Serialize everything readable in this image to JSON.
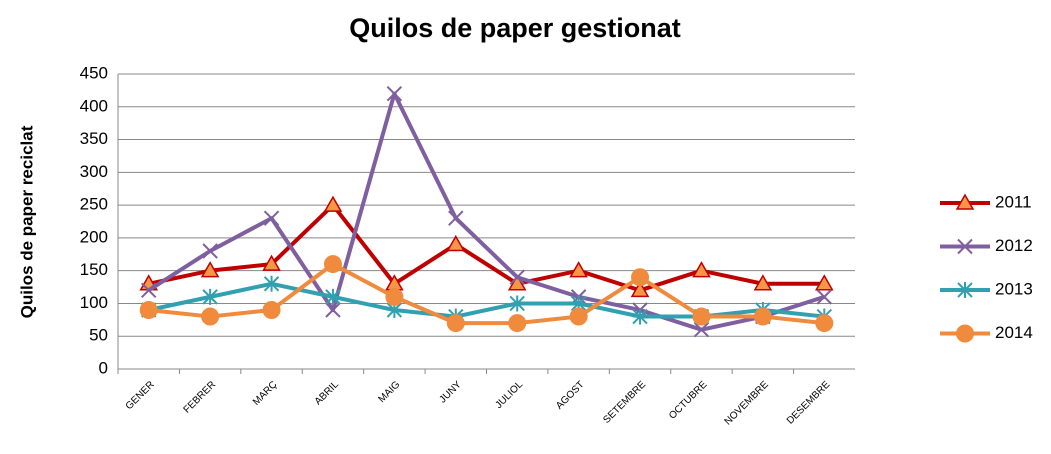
{
  "chart_data": {
    "type": "line",
    "title": "Quilos de paper gestionat",
    "y_label": "Quilos de paper reciclat",
    "categories": [
      "GENER",
      "FEBRER",
      "MARÇ",
      "ABRIL",
      "MAIG",
      "JUNY",
      "JULIOL",
      "AGOST",
      "SETEMBRE",
      "OCTUBRE",
      "NOVEMBRE",
      "DESEMBRE"
    ],
    "series": [
      {
        "name": "2011",
        "color": "#c00000",
        "marker": "triangle",
        "marker_fill": "#f79646",
        "values": [
          130,
          150,
          160,
          250,
          130,
          190,
          130,
          150,
          120,
          150,
          130,
          130
        ]
      },
      {
        "name": "2012",
        "color": "#7f5fa0",
        "marker": "x",
        "values": [
          120,
          180,
          230,
          90,
          420,
          230,
          140,
          110,
          90,
          60,
          80,
          110
        ]
      },
      {
        "name": "2013",
        "color": "#31a0b0",
        "marker": "star",
        "values": [
          90,
          110,
          130,
          110,
          90,
          80,
          100,
          100,
          80,
          80,
          90,
          80
        ]
      },
      {
        "name": "2014",
        "color": "#f08a3c",
        "marker": "circle",
        "values": [
          90,
          80,
          90,
          160,
          110,
          70,
          70,
          80,
          140,
          80,
          80,
          70
        ]
      }
    ],
    "ylim": [
      0,
      450
    ],
    "yticks": [
      0,
      50,
      100,
      150,
      200,
      250,
      300,
      350,
      400,
      450
    ],
    "grid": true,
    "legend": "right"
  }
}
